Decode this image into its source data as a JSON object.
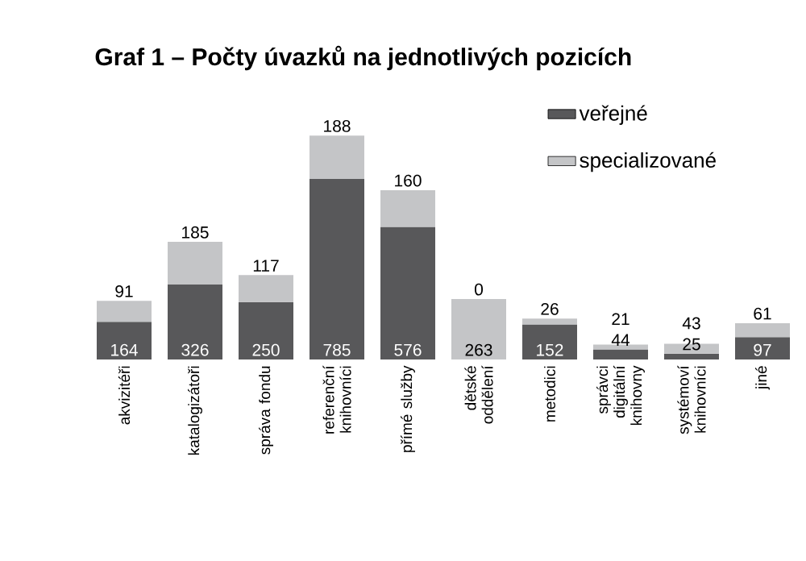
{
  "chart_data": {
    "type": "bar",
    "title": "Graf 1 – Počty úvazků na jednotlivých pozicích",
    "categories": [
      "akvizitéři",
      "katalogizátoři",
      "správa fondu",
      "referenční knihovníci",
      "přímé služby",
      "dětské oddělení",
      "metodici",
      "správci digitální knihovny",
      "systémoví knihovníci",
      "jiné"
    ],
    "stacked": true,
    "data_labels": true,
    "legend": "top right",
    "series": [
      {
        "name": "veřejné",
        "color": "#58585a",
        "colors": [
          "#58585a",
          "#58585a",
          "#58585a",
          "#58585a",
          "#58585a",
          "#c4c5c7",
          "#58585a",
          "#58585a",
          "#58585a",
          "#58585a"
        ],
        "values": [
          164,
          326,
          250,
          785,
          576,
          263,
          152,
          44,
          25,
          97
        ]
      },
      {
        "name": "specializované",
        "color": "#c4c5c7",
        "values": [
          91,
          185,
          117,
          188,
          160,
          0,
          26,
          21,
          43,
          61
        ]
      }
    ]
  }
}
